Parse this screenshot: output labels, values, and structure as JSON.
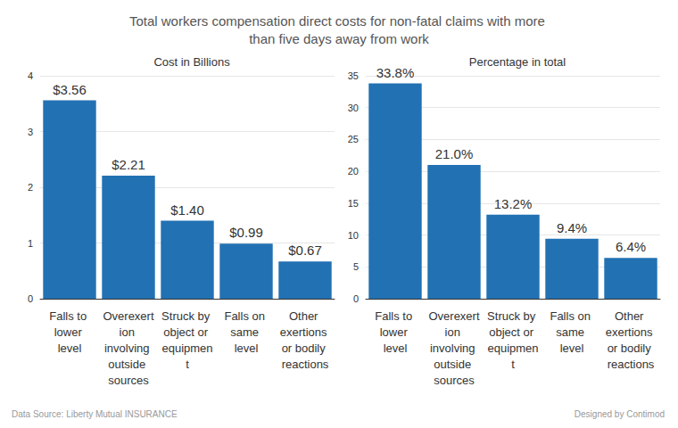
{
  "title": "Total workers compensation direct costs for non-fatal claims with more than five days away from work",
  "source": "Data Source: Liberty Mutual INSURANCE",
  "credit": "Designed by Contimod",
  "chart_data": [
    {
      "type": "bar",
      "title": "Cost in Billions",
      "categories": [
        "Falls to lower level",
        "Overexertion involving outside sources",
        "Struck by object or equipment",
        "Falls on same level",
        "Other exertions or bodily reactions"
      ],
      "values": [
        3.56,
        2.21,
        1.4,
        0.99,
        0.67
      ],
      "value_labels": [
        "$3.56",
        "$2.21",
        "$1.40",
        "$0.99",
        "$0.67"
      ],
      "color": "#2271b3",
      "ylim": [
        0,
        4
      ],
      "yticks": [
        0,
        1,
        2,
        3,
        4
      ],
      "grid": true,
      "data_labels": true
    },
    {
      "type": "bar",
      "title": "Percentage in total",
      "categories": [
        "Falls to lower level",
        "Overexertion involving outside sources",
        "Struck by object or equipment",
        "Falls on same level",
        "Other exertions or bodily reactions"
      ],
      "values": [
        33.8,
        21.0,
        13.2,
        9.4,
        6.4
      ],
      "value_labels": [
        "33.8%",
        "21.0%",
        "13.2%",
        "9.4%",
        "6.4%"
      ],
      "color": "#2271b3",
      "ylim": [
        0,
        35
      ],
      "yticks": [
        0,
        5,
        10,
        15,
        20,
        25,
        30,
        35
      ],
      "grid": true,
      "data_labels": true
    }
  ]
}
